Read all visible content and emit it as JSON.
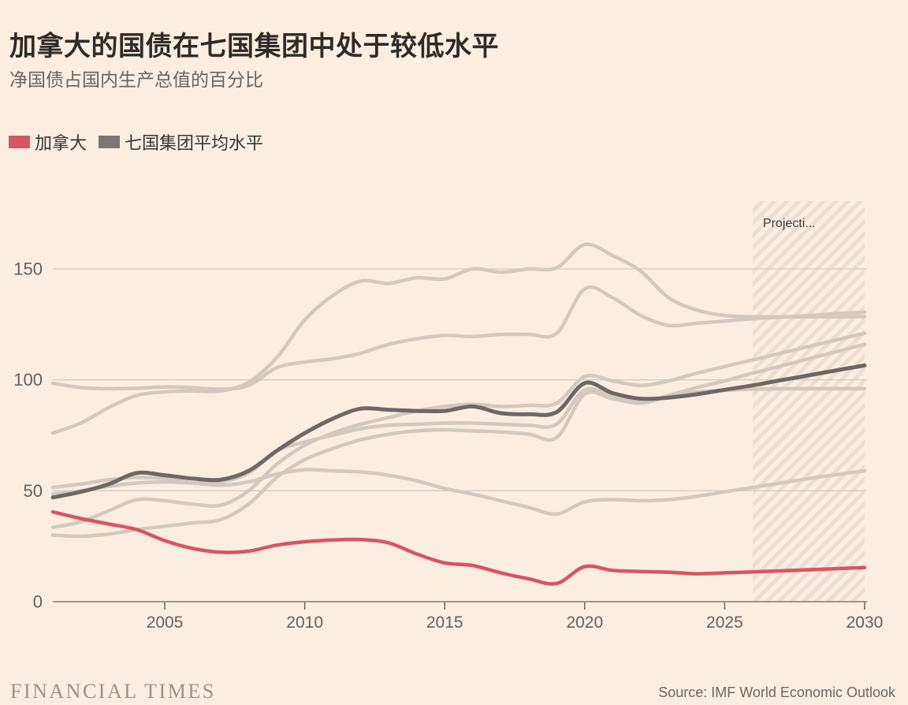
{
  "header": {
    "title": "加拿大的国债在七国集团中处于较低水平",
    "subtitle": "净国债占国内生产总值的百分比"
  },
  "legend": [
    {
      "id": "canada",
      "label": "加拿大",
      "color": "#d85562"
    },
    {
      "id": "g7-average",
      "label": "七国集团平均水平",
      "color": "#7d7673"
    }
  ],
  "footer": {
    "brand": "FINANCIAL TIMES",
    "source": "Source: IMF World Economic Outlook"
  },
  "colors": {
    "background": "#fbeee1",
    "grid_line": "#d6ccc1",
    "zero_axis": "#8d8781",
    "axis_text": "#66605c",
    "light_series": "#d3c8be",
    "dark_series": "#6e6763",
    "red_series": "#d85562",
    "hatch_stripe": "#eadfd3",
    "projection_text": "#45413d"
  },
  "chart_data": {
    "type": "line",
    "title": "加拿大的国债在七国集团中处于较低水平",
    "subtitle_unit": "净国债占国内生产总值的百分比",
    "grid": "horizontal",
    "legend_position": "top-left",
    "ylim": [
      0,
      165
    ],
    "yticks": [
      0,
      50,
      100,
      150
    ],
    "xticks": [
      2005,
      2010,
      2015,
      2020,
      2025,
      2030
    ],
    "projection": {
      "start_year": 2026,
      "end_year": 2030,
      "label": "Projecti..."
    },
    "x_years": [
      2001,
      2002,
      2003,
      2004,
      2005,
      2006,
      2007,
      2008,
      2009,
      2010,
      2011,
      2012,
      2013,
      2014,
      2015,
      2016,
      2017,
      2018,
      2019,
      2020,
      2021,
      2022,
      2023,
      2024,
      2025,
      2026,
      2027,
      2028,
      2029,
      2030
    ],
    "series": [
      {
        "id": "g7-member-1",
        "label": "G7成员国（未标注）",
        "role": "background",
        "color": "#d3c8be",
        "width": 4.5,
        "values": [
          76,
          80.5,
          87.5,
          93,
          94.5,
          95,
          95,
          99,
          110,
          127,
          138,
          144.5,
          143.5,
          146,
          145.5,
          150,
          148.5,
          150,
          150.5,
          161,
          156,
          149,
          137,
          131.5,
          129,
          128.5,
          128.4,
          128.4,
          128.4,
          128.5
        ]
      },
      {
        "id": "g7-member-2",
        "label": "G7成员国（未标注）",
        "role": "background",
        "color": "#d3c8be",
        "width": 4.5,
        "values": [
          98.5,
          96.5,
          96,
          96.2,
          96.8,
          96.5,
          95.8,
          97.5,
          105.5,
          108,
          109.5,
          112,
          116,
          118.5,
          120,
          119.5,
          120.5,
          120.5,
          121,
          141,
          137,
          129,
          124.5,
          125.5,
          126.5,
          127.5,
          128.3,
          129,
          129.8,
          130.5
        ]
      },
      {
        "id": "g7-member-3",
        "label": "G7成员国（未标注）",
        "role": "background",
        "color": "#d3c8be",
        "width": 4.5,
        "values": [
          33.5,
          36,
          41,
          46,
          45.5,
          44,
          43.5,
          50,
          62,
          70.5,
          76,
          80,
          83,
          86,
          88,
          89,
          88,
          88.5,
          89.5,
          101.5,
          99.5,
          97.5,
          99.5,
          103,
          106,
          109,
          112,
          115,
          118,
          121
        ]
      },
      {
        "id": "g7-member-4",
        "label": "G7成员国（未标注）",
        "role": "background",
        "color": "#d3c8be",
        "width": 4.5,
        "values": [
          48.5,
          50,
          52,
          53.5,
          54,
          53.5,
          54,
          58,
          68,
          72,
          75,
          78,
          79.5,
          80,
          80.5,
          80.5,
          80,
          79.5,
          80,
          95.5,
          92.5,
          90,
          93,
          96.5,
          99.5,
          103,
          106.2,
          109.5,
          112.7,
          116
        ]
      },
      {
        "id": "g7-member-5",
        "label": "G7成员国（未标注）",
        "role": "background",
        "color": "#d3c8be",
        "width": 4.5,
        "values": [
          30,
          29.5,
          30.5,
          32.5,
          34,
          35.5,
          37,
          44,
          56,
          64,
          69,
          73,
          75.5,
          77,
          77.5,
          77,
          76.5,
          75.5,
          74,
          93.5,
          91.5,
          89.5,
          92.5,
          94.5,
          95.3,
          95.8,
          96,
          96,
          96,
          96
        ]
      },
      {
        "id": "g7-member-6",
        "label": "G7成员国（未标注）",
        "role": "background",
        "color": "#d3c8be",
        "width": 4.5,
        "values": [
          51.5,
          53,
          55,
          56,
          55.5,
          53.5,
          52.5,
          54,
          57.5,
          59.5,
          59,
          58.5,
          57,
          54.5,
          51,
          48.5,
          45.5,
          42.5,
          39.5,
          45,
          46,
          45.5,
          46,
          47.5,
          49.5,
          51.5,
          53.5,
          55.5,
          57.3,
          59
        ]
      },
      {
        "id": "g7-average",
        "label": "七国集团平均水平",
        "role": "highlight",
        "color": "#6e6763",
        "width": 5,
        "values": [
          47,
          49.5,
          53,
          58,
          57,
          55.5,
          55,
          59,
          68,
          76,
          82.5,
          87,
          86.5,
          86,
          86,
          88,
          85,
          84.5,
          85.5,
          98.5,
          94,
          91.5,
          92,
          93.5,
          95.5,
          97.5,
          99.8,
          102,
          104.3,
          106.5
        ]
      },
      {
        "id": "canada",
        "label": "加拿大",
        "role": "highlight",
        "color": "#d85562",
        "width": 4.5,
        "values": [
          40.5,
          37.5,
          35,
          32.5,
          27.5,
          24,
          22.3,
          22.8,
          25.5,
          27,
          27.8,
          28,
          26.5,
          21.5,
          17.5,
          16.3,
          13,
          10.3,
          8.2,
          15.8,
          14.1,
          13.6,
          13.3,
          12.6,
          13,
          13.4,
          13.9,
          14.4,
          14.9,
          15.4
        ]
      }
    ]
  }
}
